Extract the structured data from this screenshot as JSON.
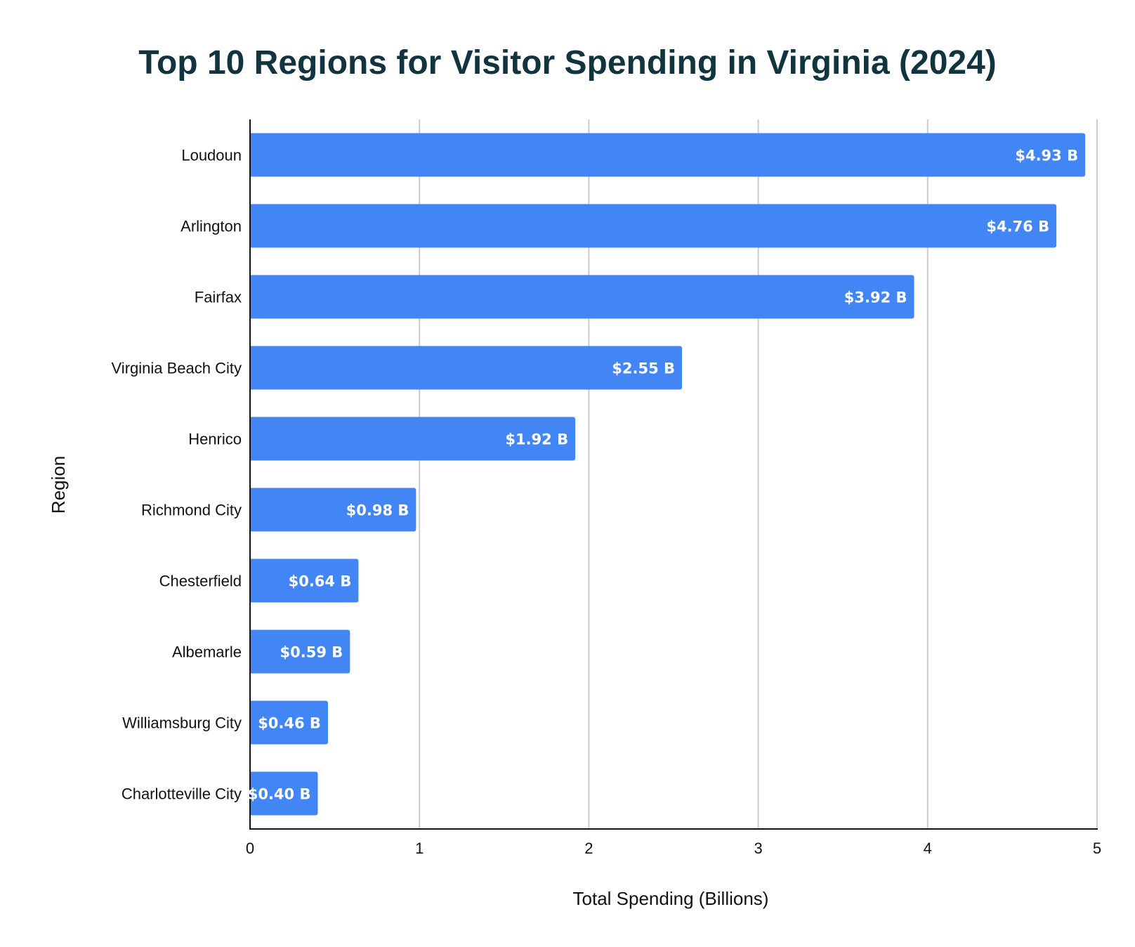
{
  "chart_data": {
    "type": "bar",
    "orientation": "horizontal",
    "title": "Top 10 Regions for Visitor Spending in Virginia (2024)",
    "xlabel": "Total Spending (Billions)",
    "ylabel": "Region",
    "categories": [
      "Loudoun",
      "Arlington",
      "Fairfax",
      "Virginia Beach City",
      "Henrico",
      "Richmond City",
      "Chesterfield",
      "Albemarle",
      "Williamsburg City",
      "Charlotteville City"
    ],
    "values": [
      4.93,
      4.76,
      3.92,
      2.55,
      1.92,
      0.98,
      0.64,
      0.59,
      0.46,
      0.4
    ],
    "data_labels": [
      "$4.93 B",
      "$4.76 B",
      "$3.92 B",
      "$2.55 B",
      "$1.92 B",
      "$0.98 B",
      "$0.64 B",
      "$0.59 B",
      "$0.46 B",
      "$0.40 B"
    ],
    "xlim": [
      0,
      5
    ],
    "xticks": [
      "0",
      "1",
      "2",
      "3",
      "4",
      "5"
    ],
    "grid": "vertical",
    "legend": "none",
    "colors": {
      "bar": "#4285f4",
      "title": "#12343f",
      "grid": "#cccccc",
      "axis": "#111111",
      "data_label": "#ffffff"
    }
  }
}
